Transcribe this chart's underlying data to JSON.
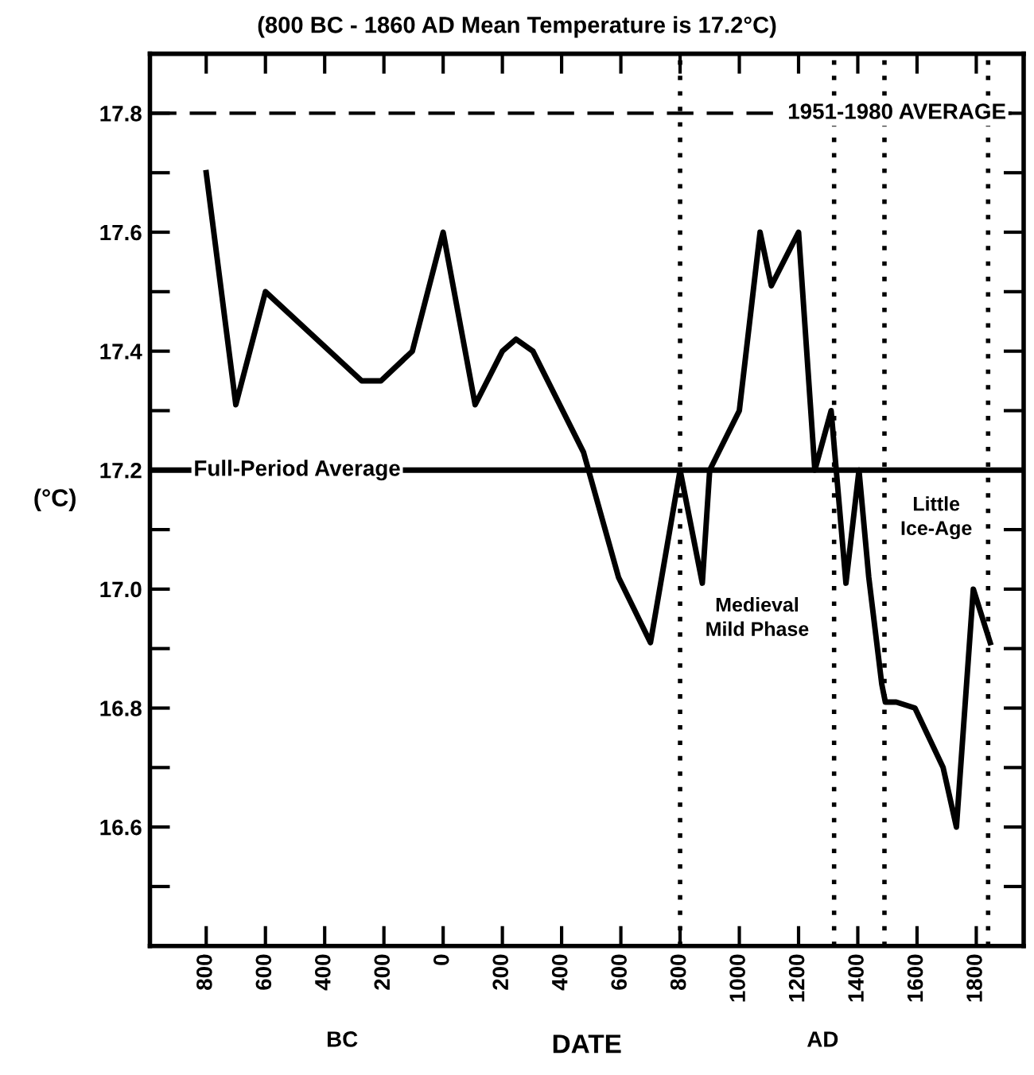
{
  "chart_data": {
    "type": "line",
    "title": "(800 BC - 1860 AD Mean Temperature is 17.2°C)",
    "xlabel": "DATE",
    "ylabel": "(°C)",
    "x": [
      -800,
      -700,
      -600,
      -275,
      -210,
      -104,
      0,
      108,
      200,
      246,
      303,
      474,
      592,
      700,
      800,
      875,
      900,
      1000,
      1070,
      1108,
      1200,
      1255,
      1310,
      1360,
      1404,
      1437,
      1481,
      1493,
      1530,
      1593,
      1688,
      1733,
      1790,
      1847
    ],
    "series": [
      {
        "color": "#000000",
        "values": [
          17.7,
          17.31,
          17.5,
          17.35,
          17.35,
          17.4,
          17.6,
          17.31,
          17.4,
          17.42,
          17.4,
          17.23,
          17.02,
          16.91,
          17.2,
          17.01,
          17.2,
          17.3,
          17.6,
          17.51,
          17.6,
          17.2,
          17.3,
          17.01,
          17.2,
          17.02,
          16.84,
          16.81,
          16.81,
          16.8,
          16.7,
          16.6,
          17.0,
          16.91
        ]
      }
    ],
    "xlim": [
      -990,
      1960
    ],
    "ylim": [
      16.4,
      17.9
    ],
    "xticks": [
      {
        "value": -800,
        "label": "800"
      },
      {
        "value": -600,
        "label": "600"
      },
      {
        "value": -400,
        "label": "400"
      },
      {
        "value": -200,
        "label": "200"
      },
      0,
      200,
      400,
      600,
      800,
      1000,
      1200,
      1400,
      1600,
      1800
    ],
    "yticks": [
      {
        "value": 16.5,
        "label": null
      },
      {
        "value": 16.6,
        "label": "16.6"
      },
      {
        "value": 16.7,
        "label": null
      },
      {
        "value": 16.8,
        "label": "16.8"
      },
      {
        "value": 16.9,
        "label": null
      },
      {
        "value": 17.0,
        "label": "17.0"
      },
      {
        "value": 17.1,
        "label": null
      },
      {
        "value": 17.2,
        "label": "17.2"
      },
      {
        "value": 17.3,
        "label": null
      },
      {
        "value": 17.4,
        "label": "17.4"
      },
      {
        "value": 17.5,
        "label": null
      },
      {
        "value": 17.6,
        "label": "17.6"
      },
      {
        "value": 17.7,
        "label": null
      },
      {
        "value": 17.8,
        "label": "17.8"
      }
    ],
    "ref_lines": [
      {
        "axis": "y",
        "value": 17.8,
        "label": "1951-1980 AVERAGE",
        "line_style": "dashed",
        "color": "#000000"
      },
      {
        "axis": "y",
        "value": 17.2,
        "label": "Full-Period Average",
        "line_style": "solid",
        "color": "#000000"
      },
      {
        "axis": "x",
        "value": 800,
        "line_style": "dotted",
        "color": "#000000"
      },
      {
        "axis": "x",
        "value": 1320,
        "line_style": "dotted",
        "color": "#000000"
      },
      {
        "axis": "x",
        "value": 1490,
        "line_style": "dotted",
        "color": "#000000"
      },
      {
        "axis": "x",
        "value": 1840,
        "line_style": "dotted",
        "color": "#000000"
      }
    ],
    "annotations": [
      "Medieval\nMild Phase",
      "Little\nIce-Age",
      "BC",
      "AD"
    ],
    "grid": false,
    "legend": false,
    "marker": "none",
    "line_style": "solid"
  }
}
